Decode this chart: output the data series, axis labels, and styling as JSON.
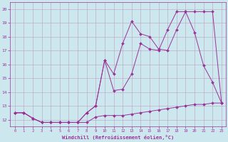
{
  "xlabel": "Windchill (Refroidissement éolien,°C)",
  "background_color": "#cce8ee",
  "grid_color": "#bb99bb",
  "line_color": "#993399",
  "xlim": [
    -0.5,
    23.5
  ],
  "ylim": [
    11.5,
    20.5
  ],
  "xticks": [
    0,
    1,
    2,
    3,
    4,
    5,
    6,
    7,
    8,
    9,
    10,
    11,
    12,
    13,
    14,
    15,
    16,
    17,
    18,
    19,
    20,
    21,
    22,
    23
  ],
  "yticks": [
    12,
    13,
    14,
    15,
    16,
    17,
    18,
    19,
    20
  ],
  "series1_x": [
    0,
    1,
    2,
    3,
    4,
    5,
    6,
    7,
    8,
    9,
    10,
    11,
    12,
    13,
    14,
    15,
    16,
    17,
    18,
    19,
    20,
    21,
    22,
    23
  ],
  "series1_y": [
    12.5,
    12.5,
    12.1,
    11.8,
    11.8,
    11.8,
    11.8,
    11.8,
    11.8,
    12.2,
    12.3,
    12.3,
    12.3,
    12.4,
    12.5,
    12.6,
    12.7,
    12.8,
    12.9,
    13.0,
    13.1,
    13.1,
    13.2,
    13.2
  ],
  "series2_x": [
    0,
    1,
    2,
    3,
    4,
    5,
    6,
    7,
    8,
    9,
    10,
    11,
    12,
    13,
    14,
    15,
    16,
    17,
    18,
    19,
    20,
    21,
    22,
    23
  ],
  "series2_y": [
    12.5,
    12.5,
    12.1,
    11.8,
    11.8,
    11.8,
    11.8,
    11.8,
    12.5,
    13.0,
    16.3,
    15.3,
    17.5,
    19.1,
    18.2,
    18.0,
    17.1,
    17.0,
    18.5,
    19.8,
    18.3,
    15.9,
    14.7,
    13.2
  ],
  "series3_x": [
    0,
    1,
    2,
    3,
    4,
    5,
    6,
    7,
    8,
    9,
    10,
    11,
    12,
    13,
    14,
    15,
    16,
    17,
    18,
    19,
    20,
    21,
    22,
    23
  ],
  "series3_y": [
    12.5,
    12.5,
    12.1,
    11.8,
    11.8,
    11.8,
    11.8,
    11.8,
    12.5,
    13.0,
    16.3,
    14.1,
    14.2,
    15.3,
    17.5,
    17.1,
    17.0,
    18.5,
    19.8,
    19.8,
    19.8,
    19.8,
    19.8,
    13.2
  ]
}
